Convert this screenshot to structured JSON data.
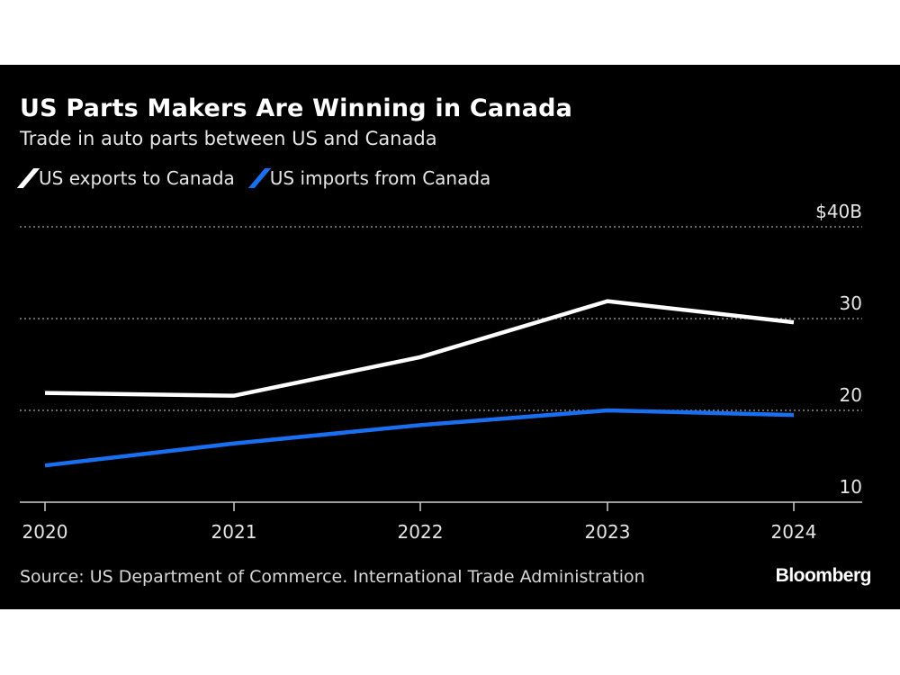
{
  "chart_data": {
    "type": "line",
    "title": "US Parts Makers Are Winning in Canada",
    "subtitle": "Trade in auto parts between US and Canada",
    "x": [
      "2020",
      "2021",
      "2022",
      "2023",
      "2024"
    ],
    "series": [
      {
        "name": "US exports to Canada",
        "color": "#ffffff",
        "values": [
          21.9,
          21.6,
          25.8,
          31.9,
          29.6
        ]
      },
      {
        "name": "US imports from Canada",
        "color": "#1a6ff0",
        "values": [
          14.0,
          16.4,
          18.4,
          20.0,
          19.5
        ]
      }
    ],
    "ylim": [
      10,
      40
    ],
    "yticks": [
      10,
      20,
      30,
      40
    ],
    "ytick_labels": [
      "10",
      "20",
      "30",
      "$40B"
    ],
    "grid": true,
    "legend": "top-left",
    "source": "Source: US Department of Commerce. International Trade Administration",
    "logo": "Bloomberg"
  }
}
